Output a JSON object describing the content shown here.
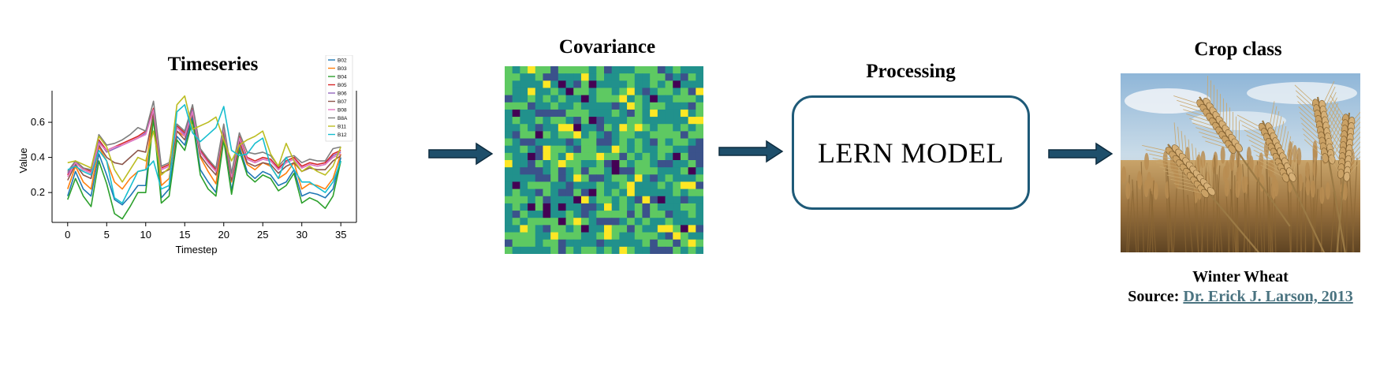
{
  "stages": {
    "timeseries_title": "Timeseries",
    "covariance_title": "Covariance",
    "processing_title": "Processing",
    "crop_title": "Crop class"
  },
  "model": {
    "label": "LERN MODEL"
  },
  "result": {
    "crop_name": "Winter Wheat",
    "source_prefix": "Source: ",
    "source_link": "Dr. Erick J. Larson, 2013"
  },
  "colors": {
    "arrow": "#1e4f6b",
    "box_border": "#1e5a78",
    "link": "#4a7380"
  },
  "chart_data": {
    "type": "line",
    "xlabel": "Timestep",
    "ylabel": "Value",
    "xlim": [
      -2,
      37
    ],
    "ylim": [
      0.03,
      0.78
    ],
    "xticks": [
      0,
      5,
      10,
      15,
      20,
      25,
      30,
      35
    ],
    "yticks": [
      0.2,
      0.4,
      0.6
    ],
    "grid": false,
    "legend_position": "top-right",
    "x": [
      0,
      1,
      2,
      3,
      4,
      5,
      6,
      7,
      8,
      9,
      10,
      11,
      12,
      13,
      14,
      15,
      16,
      17,
      18,
      19,
      20,
      21,
      22,
      23,
      24,
      25,
      26,
      27,
      28,
      29,
      30,
      31,
      32,
      33,
      34,
      35
    ],
    "series": [
      {
        "name": "B02",
        "color": "#1f77b4",
        "values": [
          0.18,
          0.32,
          0.22,
          0.18,
          0.42,
          0.3,
          0.16,
          0.13,
          0.18,
          0.24,
          0.24,
          0.64,
          0.17,
          0.22,
          0.52,
          0.47,
          0.63,
          0.33,
          0.26,
          0.2,
          0.52,
          0.21,
          0.46,
          0.32,
          0.28,
          0.32,
          0.3,
          0.24,
          0.26,
          0.33,
          0.18,
          0.2,
          0.19,
          0.17,
          0.22,
          0.4
        ]
      },
      {
        "name": "B03",
        "color": "#ff7f0e",
        "values": [
          0.22,
          0.35,
          0.26,
          0.22,
          0.46,
          0.38,
          0.26,
          0.22,
          0.28,
          0.32,
          0.33,
          0.67,
          0.24,
          0.28,
          0.55,
          0.52,
          0.66,
          0.4,
          0.32,
          0.25,
          0.55,
          0.26,
          0.48,
          0.36,
          0.33,
          0.37,
          0.35,
          0.28,
          0.31,
          0.37,
          0.22,
          0.25,
          0.24,
          0.22,
          0.28,
          0.42
        ]
      },
      {
        "name": "B04",
        "color": "#2ca02c",
        "values": [
          0.16,
          0.28,
          0.18,
          0.12,
          0.38,
          0.25,
          0.08,
          0.05,
          0.12,
          0.2,
          0.2,
          0.62,
          0.14,
          0.18,
          0.5,
          0.44,
          0.61,
          0.3,
          0.22,
          0.18,
          0.5,
          0.19,
          0.44,
          0.3,
          0.26,
          0.3,
          0.28,
          0.21,
          0.24,
          0.31,
          0.14,
          0.17,
          0.15,
          0.11,
          0.18,
          0.38
        ]
      },
      {
        "name": "B05",
        "color": "#d62728",
        "values": [
          0.3,
          0.38,
          0.34,
          0.32,
          0.5,
          0.44,
          0.46,
          0.48,
          0.5,
          0.52,
          0.55,
          0.68,
          0.34,
          0.36,
          0.58,
          0.54,
          0.68,
          0.44,
          0.38,
          0.33,
          0.58,
          0.3,
          0.52,
          0.4,
          0.38,
          0.4,
          0.39,
          0.34,
          0.38,
          0.4,
          0.35,
          0.37,
          0.36,
          0.37,
          0.42,
          0.44
        ]
      },
      {
        "name": "B06",
        "color": "#9467bd",
        "values": [
          0.31,
          0.37,
          0.33,
          0.31,
          0.49,
          0.43,
          0.45,
          0.47,
          0.49,
          0.51,
          0.54,
          0.67,
          0.33,
          0.35,
          0.57,
          0.53,
          0.67,
          0.43,
          0.37,
          0.32,
          0.57,
          0.29,
          0.51,
          0.39,
          0.37,
          0.39,
          0.38,
          0.33,
          0.37,
          0.39,
          0.34,
          0.36,
          0.35,
          0.36,
          0.41,
          0.43
        ]
      },
      {
        "name": "B07",
        "color": "#8c564b",
        "values": [
          0.27,
          0.36,
          0.3,
          0.28,
          0.47,
          0.4,
          0.37,
          0.36,
          0.4,
          0.44,
          0.43,
          0.65,
          0.31,
          0.33,
          0.55,
          0.5,
          0.65,
          0.41,
          0.35,
          0.3,
          0.55,
          0.27,
          0.49,
          0.37,
          0.35,
          0.37,
          0.36,
          0.31,
          0.35,
          0.37,
          0.32,
          0.34,
          0.33,
          0.33,
          0.38,
          0.41
        ]
      },
      {
        "name": "B08",
        "color": "#e377c2",
        "values": [
          0.29,
          0.37,
          0.33,
          0.31,
          0.48,
          0.44,
          0.46,
          0.47,
          0.49,
          0.51,
          0.53,
          0.67,
          0.33,
          0.35,
          0.57,
          0.52,
          0.66,
          0.43,
          0.37,
          0.32,
          0.57,
          0.29,
          0.51,
          0.39,
          0.37,
          0.39,
          0.38,
          0.33,
          0.37,
          0.39,
          0.34,
          0.36,
          0.35,
          0.36,
          0.4,
          0.42
        ]
      },
      {
        "name": "B8A",
        "color": "#7f7f7f",
        "values": [
          0.32,
          0.38,
          0.34,
          0.33,
          0.53,
          0.47,
          0.48,
          0.5,
          0.53,
          0.57,
          0.55,
          0.72,
          0.35,
          0.37,
          0.59,
          0.55,
          0.7,
          0.45,
          0.39,
          0.34,
          0.59,
          0.31,
          0.54,
          0.43,
          0.42,
          0.43,
          0.41,
          0.35,
          0.4,
          0.41,
          0.37,
          0.39,
          0.38,
          0.38,
          0.45,
          0.46
        ]
      },
      {
        "name": "B11",
        "color": "#bcbd22",
        "values": [
          0.37,
          0.38,
          0.36,
          0.34,
          0.52,
          0.46,
          0.33,
          0.26,
          0.33,
          0.4,
          0.38,
          0.55,
          0.3,
          0.34,
          0.7,
          0.75,
          0.56,
          0.58,
          0.6,
          0.63,
          0.5,
          0.38,
          0.47,
          0.5,
          0.52,
          0.55,
          0.42,
          0.35,
          0.48,
          0.38,
          0.32,
          0.35,
          0.32,
          0.3,
          0.35,
          0.46
        ]
      },
      {
        "name": "B12",
        "color": "#17becf",
        "values": [
          0.33,
          0.35,
          0.32,
          0.3,
          0.44,
          0.38,
          0.17,
          0.14,
          0.23,
          0.32,
          0.33,
          0.38,
          0.22,
          0.24,
          0.66,
          0.7,
          0.54,
          0.49,
          0.53,
          0.57,
          0.69,
          0.44,
          0.41,
          0.42,
          0.48,
          0.51,
          0.35,
          0.28,
          0.4,
          0.33,
          0.26,
          0.26,
          0.23,
          0.2,
          0.26,
          0.38
        ]
      }
    ]
  },
  "covariance_data": {
    "type": "heatmap",
    "rows": 26,
    "cols": 26,
    "colormap": [
      "#440154",
      "#3b528b",
      "#21918c",
      "#5ec962",
      "#fde725"
    ]
  }
}
